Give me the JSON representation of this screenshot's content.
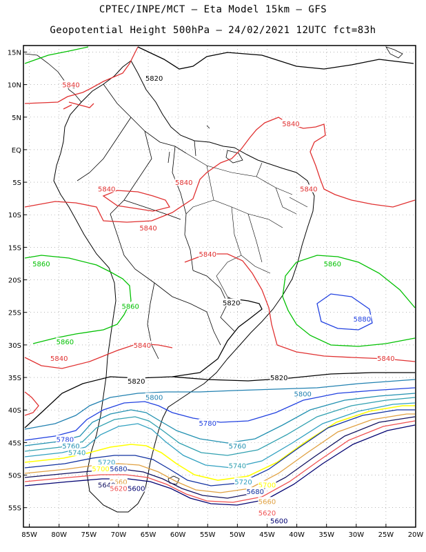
{
  "title_line1": "CPTEC/INPE/MCT –  Eta Model 15km – GFS",
  "title_line2": "Geopotential Height 500hPa – 24/02/2021 12UTC fct=83h",
  "lat_labels": [
    "15N",
    "10N",
    "5N",
    "EQ",
    "5S",
    "10S",
    "15S",
    "20S",
    "25S",
    "30S",
    "35S",
    "40S",
    "45S",
    "50S",
    "55S"
  ],
  "lon_labels": [
    "85W",
    "80W",
    "75W",
    "70W",
    "65W",
    "60W",
    "55W",
    "50W",
    "45W",
    "40W",
    "35W",
    "30W",
    "25W",
    "20W"
  ],
  "map": {
    "lon_range": [
      -86,
      -20
    ],
    "lat_range": [
      -58,
      16
    ],
    "grid": true,
    "colors": {
      "5580": "#2e4fa8",
      "5600": "#000070",
      "5620": "#f05050",
      "5640": "#101060",
      "5660": "#e0a040",
      "5680": "#1030a0",
      "5700": "#ffff00",
      "5720": "#30a0c0",
      "5740": "#30a0b0",
      "5760": "#2090b0",
      "5780": "#2040e0",
      "5800": "#2080b0",
      "5820": "#000000",
      "5840": "#e03030",
      "5860": "#00c000",
      "5880": "#2040e0",
      "coast": "#000000"
    }
  },
  "contours": [
    {
      "value": "5840",
      "label_text": "5840",
      "labels": [
        [
          -78,
          10
        ],
        [
          -38,
          -6
        ],
        [
          -80,
          -32
        ],
        [
          -25,
          -32
        ],
        [
          -41,
          4
        ],
        [
          -59,
          -5
        ],
        [
          -72,
          -6
        ],
        [
          -65,
          -12
        ],
        [
          -55,
          -16
        ],
        [
          -66,
          -30
        ]
      ]
    },
    {
      "value": "5860",
      "label_text": "5860",
      "labels": [
        [
          -83,
          -17.5
        ],
        [
          -79,
          -29.5
        ],
        [
          -68,
          -24
        ],
        [
          -34,
          -17.5
        ]
      ]
    },
    {
      "value": "5880",
      "label_text": "5880",
      "labels": [
        [
          -29,
          -26
        ]
      ]
    },
    {
      "value": "5820",
      "label_text": "5820",
      "labels": [
        [
          -64,
          11
        ],
        [
          -51,
          -23.5
        ],
        [
          -67,
          -35.5
        ],
        [
          -43,
          -35
        ]
      ]
    },
    {
      "value": "5800",
      "label_text": "5800",
      "labels": [
        [
          -64,
          -38
        ],
        [
          -39,
          -37.5
        ]
      ]
    },
    {
      "value": "5780",
      "label_text": "5780",
      "labels": [
        [
          -79,
          -44.5
        ],
        [
          -55,
          -42
        ]
      ]
    },
    {
      "value": "5760",
      "label_text": "5760",
      "labels": [
        [
          -78,
          -45.5
        ],
        [
          -50,
          -45.5
        ]
      ]
    },
    {
      "value": "5740",
      "label_text": "5740",
      "labels": [
        [
          -77,
          -46.5
        ],
        [
          -50,
          -48.5
        ]
      ]
    },
    {
      "value": "5720",
      "label_text": "5720",
      "labels": [
        [
          -72,
          -48
        ],
        [
          -49,
          -51
        ]
      ]
    },
    {
      "value": "5700",
      "label_text": "5700",
      "labels": [
        [
          -73,
          -49
        ],
        [
          -45,
          -51.5
        ]
      ]
    },
    {
      "value": "5680",
      "label_text": "5680",
      "labels": [
        [
          -70,
          -49
        ],
        [
          -47,
          -52.5
        ]
      ]
    },
    {
      "value": "5660",
      "label_text": "5660",
      "labels": [
        [
          -70,
          -51
        ],
        [
          -45,
          -54
        ]
      ]
    },
    {
      "value": "5640",
      "label_text": "5640",
      "labels": [
        [
          -72,
          -51.5
        ],
        [
          -45,
          -55.5
        ]
      ]
    },
    {
      "value": "5620",
      "label_text": "5620",
      "labels": [
        [
          -70,
          -52
        ],
        [
          -45,
          -55.8
        ]
      ]
    },
    {
      "value": "5600",
      "label_text": "5600",
      "labels": [
        [
          -67,
          -52
        ],
        [
          -43,
          -57
        ]
      ]
    }
  ]
}
